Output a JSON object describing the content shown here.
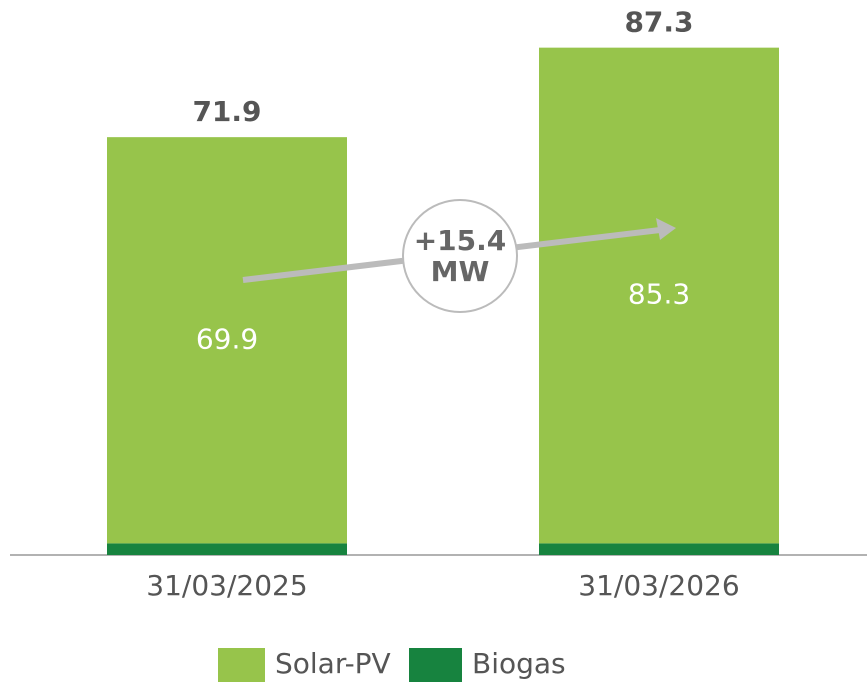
{
  "chart_data": {
    "type": "stacked_bar",
    "categories": [
      "31/03/2025",
      "31/03/2026"
    ],
    "series": [
      {
        "name": "Solar-PV",
        "color": "#97c44b",
        "values": [
          69.9,
          85.3
        ]
      },
      {
        "name": "Biogas",
        "color": "#17833f",
        "values": [
          2.0,
          2.0
        ]
      }
    ],
    "totals": [
      71.9,
      87.3
    ],
    "annotation": [
      "+15.4",
      "MW"
    ],
    "ylim": [
      0,
      95.5
    ],
    "legend": "bottom"
  }
}
